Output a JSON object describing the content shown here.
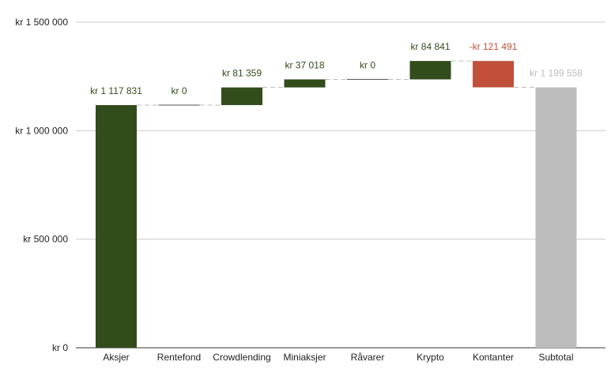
{
  "chart_data": {
    "type": "bar",
    "subtype": "waterfall",
    "title": "",
    "xlabel": "",
    "ylabel": "",
    "ylim": [
      0,
      1500000
    ],
    "y_ticks": [
      {
        "value": 0,
        "label": "kr   0"
      },
      {
        "value": 500000,
        "label": "kr  500 000"
      },
      {
        "value": 1000000,
        "label": "kr 1 000 000"
      },
      {
        "value": 1500000,
        "label": "kr 1 500 000"
      }
    ],
    "grid": true,
    "legend": "none",
    "colors": {
      "increase": "#324c1c",
      "decrease": "#c0503a",
      "total": "#bdbdbd"
    },
    "categories": [
      "Aksjer",
      "Rentefond",
      "Crowdlending",
      "Miniaksjer",
      "Råvarer",
      "Krypto",
      "Kontanter",
      "Subtotal"
    ],
    "values": [
      1117831,
      0,
      81359,
      37018,
      0,
      84841,
      -121491,
      1199558
    ],
    "kinds": [
      "increase",
      "increase",
      "increase",
      "increase",
      "increase",
      "increase",
      "decrease",
      "total"
    ],
    "data_labels": [
      "kr 1 117 831",
      "kr   0",
      "kr  81 359",
      "kr  37 018",
      "kr   0",
      "kr  84 841",
      "-kr  121 491",
      "kr 1 199 558"
    ]
  }
}
